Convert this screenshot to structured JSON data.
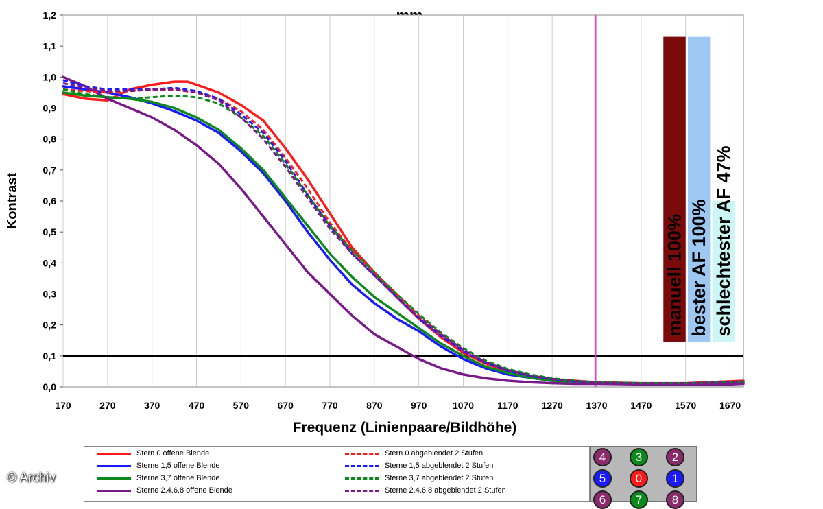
{
  "chart_data": {
    "type": "line",
    "title": "mm",
    "xlabel": "Frequenz (Linienpaare/Bildhöhe)",
    "ylabel": "Kontrast",
    "xlim": [
      170,
      1700
    ],
    "ylim": [
      0,
      1.2
    ],
    "xticks": [
      "170",
      "270",
      "370",
      "470",
      "570",
      "670",
      "770",
      "870",
      "970",
      "1070",
      "1170",
      "1270",
      "1370",
      "1470",
      "1570",
      "1670"
    ],
    "yticks": [
      "0,0",
      "0,1",
      "0,2",
      "0,3",
      "0,4",
      "0,5",
      "0,6",
      "0,7",
      "0,8",
      "0,9",
      "1,0",
      "1,1",
      "1,2"
    ],
    "grid": "vertical",
    "threshold_line": {
      "y": 0.1,
      "color": "#000000"
    },
    "marker_line": {
      "x": 1367,
      "color": "#e040e0"
    },
    "series": [
      {
        "name": "Stern 0 offene Blende",
        "color": "#ff1a1a",
        "dash": false,
        "x": [
          170,
          220,
          270,
          320,
          370,
          420,
          450,
          480,
          520,
          570,
          620,
          670,
          720,
          770,
          820,
          870,
          920,
          970,
          1020,
          1070,
          1120,
          1170,
          1220,
          1270,
          1320,
          1370,
          1470,
          1570,
          1670,
          1700
        ],
        "y": [
          0.945,
          0.93,
          0.925,
          0.96,
          0.975,
          0.985,
          0.985,
          0.97,
          0.95,
          0.91,
          0.86,
          0.77,
          0.67,
          0.56,
          0.45,
          0.37,
          0.29,
          0.22,
          0.16,
          0.11,
          0.075,
          0.05,
          0.035,
          0.025,
          0.02,
          0.015,
          0.012,
          0.012,
          0.018,
          0.02
        ]
      },
      {
        "name": "Sterne 1,5 offene Blende",
        "color": "#1a1aff",
        "dash": false,
        "x": [
          170,
          220,
          270,
          320,
          370,
          420,
          470,
          520,
          570,
          620,
          670,
          720,
          770,
          820,
          870,
          920,
          970,
          1020,
          1070,
          1120,
          1170,
          1220,
          1270,
          1320,
          1370,
          1470,
          1570,
          1670,
          1700
        ],
        "y": [
          0.97,
          0.96,
          0.95,
          0.935,
          0.915,
          0.89,
          0.86,
          0.82,
          0.76,
          0.69,
          0.6,
          0.5,
          0.41,
          0.33,
          0.27,
          0.22,
          0.18,
          0.13,
          0.09,
          0.06,
          0.04,
          0.03,
          0.02,
          0.015,
          0.012,
          0.01,
          0.01,
          0.012,
          0.015
        ]
      },
      {
        "name": "Sterne 3,7 offene Blende",
        "color": "#0b8a1c",
        "dash": false,
        "x": [
          170,
          220,
          270,
          320,
          370,
          420,
          470,
          520,
          570,
          620,
          670,
          720,
          770,
          820,
          870,
          920,
          970,
          1020,
          1070,
          1120,
          1170,
          1220,
          1270,
          1320,
          1370,
          1470,
          1570,
          1670,
          1700
        ],
        "y": [
          0.95,
          0.94,
          0.935,
          0.93,
          0.92,
          0.9,
          0.87,
          0.83,
          0.77,
          0.7,
          0.61,
          0.52,
          0.43,
          0.355,
          0.29,
          0.24,
          0.19,
          0.14,
          0.1,
          0.065,
          0.045,
          0.03,
          0.02,
          0.015,
          0.012,
          0.01,
          0.01,
          0.012,
          0.015
        ]
      },
      {
        "name": "Sterne 2.4.6.8 offene Blende",
        "color": "#7a1a8a",
        "dash": false,
        "x": [
          170,
          220,
          270,
          320,
          370,
          420,
          470,
          520,
          570,
          620,
          670,
          720,
          770,
          820,
          870,
          920,
          970,
          1020,
          1070,
          1120,
          1170,
          1220,
          1270,
          1320,
          1370,
          1470,
          1570,
          1670,
          1700
        ],
        "y": [
          1.0,
          0.97,
          0.93,
          0.9,
          0.87,
          0.83,
          0.78,
          0.72,
          0.64,
          0.55,
          0.46,
          0.37,
          0.3,
          0.23,
          0.17,
          0.13,
          0.09,
          0.06,
          0.04,
          0.028,
          0.02,
          0.015,
          0.012,
          0.01,
          0.01,
          0.008,
          0.008,
          0.008,
          0.01
        ]
      },
      {
        "name": "Stern 0 abgeblendet 2 Stufen",
        "color": "#ff1a1a",
        "dash": true,
        "x": [
          170,
          220,
          270,
          320,
          370,
          420,
          470,
          520,
          570,
          620,
          670,
          720,
          770,
          820,
          870,
          920,
          970,
          1020,
          1070,
          1120,
          1170,
          1220,
          1270,
          1320,
          1370,
          1470,
          1570,
          1670,
          1700
        ],
        "y": [
          0.96,
          0.955,
          0.95,
          0.955,
          0.96,
          0.96,
          0.95,
          0.93,
          0.89,
          0.83,
          0.74,
          0.64,
          0.53,
          0.44,
          0.37,
          0.3,
          0.23,
          0.17,
          0.12,
          0.08,
          0.055,
          0.035,
          0.025,
          0.018,
          0.014,
          0.012,
          0.012,
          0.015,
          0.018
        ]
      },
      {
        "name": "Sterne 1,5 abgeblendet 2 Stufen",
        "color": "#1a1aff",
        "dash": true,
        "x": [
          170,
          220,
          270,
          320,
          370,
          420,
          470,
          520,
          570,
          620,
          670,
          720,
          770,
          820,
          870,
          920,
          970,
          1020,
          1070,
          1120,
          1170,
          1220,
          1270,
          1320,
          1370,
          1470,
          1570,
          1670,
          1700
        ],
        "y": [
          0.99,
          0.97,
          0.96,
          0.96,
          0.96,
          0.965,
          0.955,
          0.93,
          0.88,
          0.82,
          0.73,
          0.62,
          0.52,
          0.43,
          0.36,
          0.29,
          0.22,
          0.165,
          0.115,
          0.078,
          0.052,
          0.035,
          0.025,
          0.018,
          0.014,
          0.012,
          0.012,
          0.015,
          0.018
        ]
      },
      {
        "name": "Sterne 3,7 abgeblendet 2 Stufen",
        "color": "#0b8a1c",
        "dash": true,
        "x": [
          170,
          220,
          270,
          320,
          370,
          420,
          470,
          520,
          570,
          620,
          670,
          720,
          770,
          820,
          870,
          920,
          970,
          1020,
          1070,
          1120,
          1170,
          1220,
          1270,
          1320,
          1370,
          1470,
          1570,
          1670,
          1700
        ],
        "y": [
          0.96,
          0.945,
          0.935,
          0.93,
          0.935,
          0.94,
          0.935,
          0.915,
          0.87,
          0.81,
          0.72,
          0.62,
          0.52,
          0.44,
          0.37,
          0.3,
          0.235,
          0.175,
          0.125,
          0.085,
          0.058,
          0.04,
          0.028,
          0.02,
          0.015,
          0.012,
          0.012,
          0.015,
          0.018
        ]
      },
      {
        "name": "Sterne 2.4.6.8 abgeblendet 2 Stufen",
        "color": "#7a1a8a",
        "dash": true,
        "x": [
          170,
          220,
          270,
          320,
          370,
          420,
          470,
          520,
          570,
          620,
          670,
          720,
          770,
          820,
          870,
          920,
          970,
          1020,
          1070,
          1120,
          1170,
          1220,
          1270,
          1320,
          1370,
          1470,
          1570,
          1670,
          1700
        ],
        "y": [
          0.98,
          0.965,
          0.955,
          0.955,
          0.96,
          0.96,
          0.95,
          0.925,
          0.87,
          0.8,
          0.71,
          0.61,
          0.51,
          0.43,
          0.36,
          0.29,
          0.225,
          0.17,
          0.12,
          0.08,
          0.055,
          0.037,
          0.026,
          0.019,
          0.014,
          0.012,
          0.012,
          0.015,
          0.018
        ]
      }
    ],
    "annotations": [
      {
        "label": "manuell 100%",
        "value_x_start": 1520,
        "value_x_end": 1570,
        "value_top": 1.13,
        "value_bottom": 0.145,
        "fill": "#7b0a0a",
        "text_color": "#ffffff"
      },
      {
        "label": "bester AF 100%",
        "value_x_start": 1575,
        "value_x_end": 1625,
        "value_top": 1.13,
        "value_bottom": 0.145,
        "fill": "#9cc8f2",
        "text_color": "#000000"
      },
      {
        "label": "schlechtester AF 47%",
        "value_x_start": 1630,
        "value_x_end": 1680,
        "value_top": 0.6,
        "value_bottom": 0.145,
        "fill": "#ccf6f6",
        "text_color": "#000000"
      }
    ]
  },
  "legend": {
    "items": [
      {
        "label": "Stern 0 offene Blende",
        "color": "#ff1a1a",
        "dash": false
      },
      {
        "label": "Sterne 1,5 offene Blende",
        "color": "#1a1aff",
        "dash": false
      },
      {
        "label": "Sterne 3,7 offene Blende",
        "color": "#0b8a1c",
        "dash": false
      },
      {
        "label": "Sterne 2.4.6.8 offene Blende",
        "color": "#7a1a8a",
        "dash": false
      },
      {
        "label": "Stern 0 abgeblendet 2 Stufen",
        "color": "#ff1a1a",
        "dash": true
      },
      {
        "label": "Sterne 1,5 abgeblendet 2 Stufen",
        "color": "#1a1aff",
        "dash": true
      },
      {
        "label": "Sterne 3,7 abgeblendet 2 Stufen",
        "color": "#0b8a1c",
        "dash": true
      },
      {
        "label": "Sterne 2.4.6.8 abgeblendet 2 Stufen",
        "color": "#7a1a8a",
        "dash": true
      }
    ]
  },
  "star_grid": {
    "dots": [
      {
        "label": "4",
        "color": "#8a2a6a"
      },
      {
        "label": "3",
        "color": "#0b8a1c"
      },
      {
        "label": "2",
        "color": "#8a2a6a"
      },
      {
        "label": "5",
        "color": "#1a1aff"
      },
      {
        "label": "0",
        "color": "#ff1a1a"
      },
      {
        "label": "1",
        "color": "#1a1aff"
      },
      {
        "label": "6",
        "color": "#8a2a6a"
      },
      {
        "label": "7",
        "color": "#0b8a1c"
      },
      {
        "label": "8",
        "color": "#8a2a6a"
      }
    ]
  },
  "credit": "© Archiv"
}
